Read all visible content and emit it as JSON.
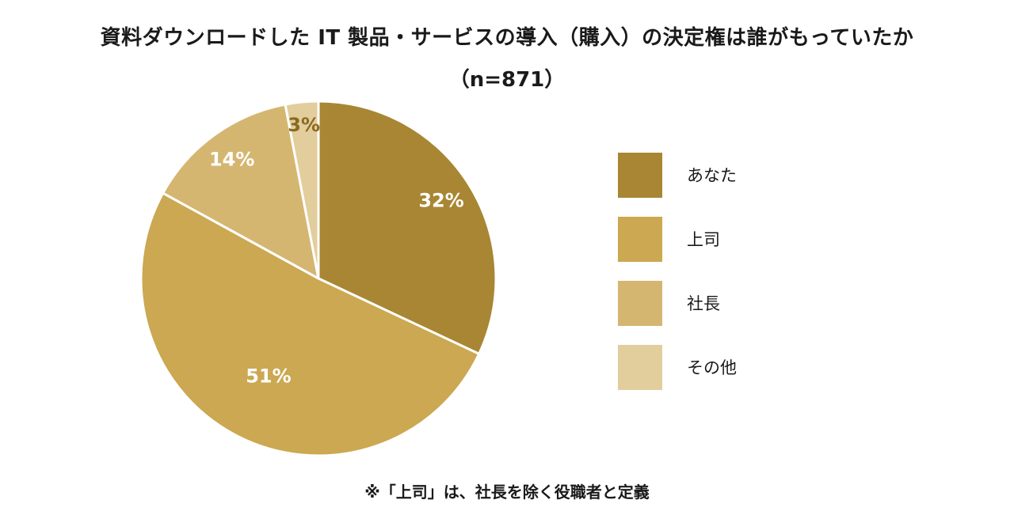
{
  "chart_data": {
    "type": "pie",
    "title": "資料ダウンロードした IT 製品・サービスの導入（購入）の決定権は誰がもっていたか",
    "subtitle": "（n=871）",
    "categories": [
      "あなた",
      "上司",
      "社長",
      "その他"
    ],
    "values": [
      32,
      51,
      14,
      3
    ],
    "value_labels": [
      "32%",
      "51%",
      "14%",
      "3%"
    ],
    "unit": "%",
    "colors": [
      "#a88633",
      "#cba851",
      "#d5b671",
      "#e2cd9c"
    ],
    "label_colors": [
      "#ffffff",
      "#ffffff",
      "#ffffff",
      "#8a6a1f"
    ],
    "start": "12 o'clock, clockwise",
    "legend_position": "right"
  },
  "footnote": "※「上司」は、社長を除く役職者と定義"
}
